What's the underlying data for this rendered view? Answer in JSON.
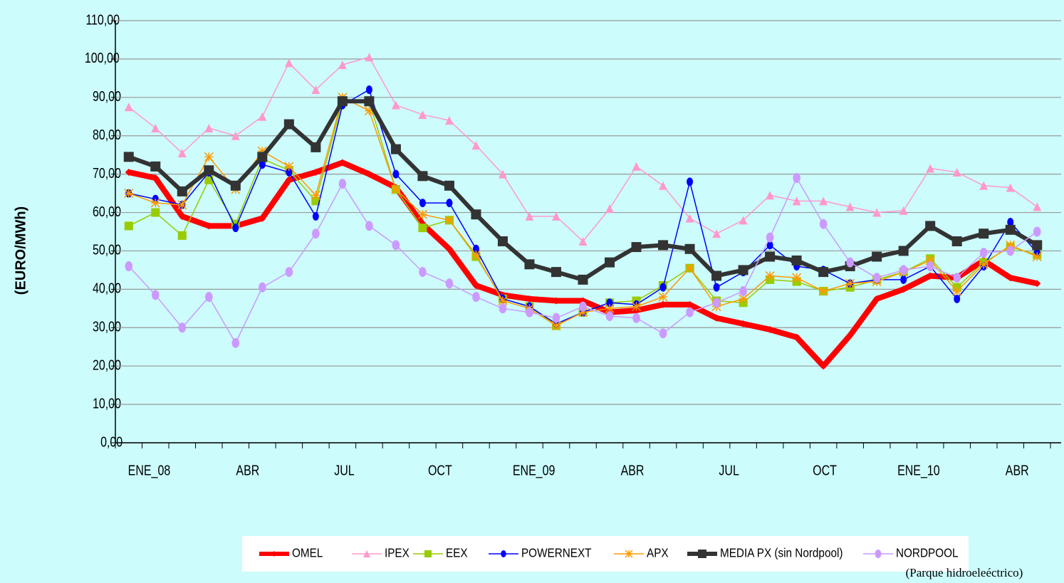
{
  "chart_data": {
    "type": "line",
    "y_label": "(EURO/MWh)",
    "footnote": "(Parque hidroeleéctrico)",
    "categories": [
      "ENE_08",
      null,
      null,
      "ABR",
      null,
      null,
      "JUL",
      null,
      null,
      "OCT",
      null,
      null,
      "ENE_09",
      null,
      null,
      "ABR",
      null,
      null,
      "JUL",
      null,
      null,
      "OCT",
      null,
      null,
      "ENE_10",
      null,
      null,
      "ABR",
      null,
      null,
      "JUL",
      null,
      null,
      "OCT",
      null
    ],
    "ylim": [
      0,
      110
    ],
    "yticks": [
      {
        "value": 0,
        "label": "0,00"
      },
      {
        "value": 10,
        "label": "10,00"
      },
      {
        "value": 20,
        "label": "20,00"
      },
      {
        "value": 30,
        "label": "30,00"
      },
      {
        "value": 40,
        "label": "40,00"
      },
      {
        "value": 50,
        "label": "50,00"
      },
      {
        "value": 60,
        "label": "60,00"
      },
      {
        "value": 70,
        "label": "70,00"
      },
      {
        "value": 80,
        "label": "80,00"
      },
      {
        "value": 90,
        "label": "90,00"
      },
      {
        "value": 100,
        "label": "100,00"
      },
      {
        "value": 110,
        "label": "110,00"
      }
    ],
    "grid": true,
    "legend": "bottom",
    "series": [
      {
        "name": "OMEL",
        "color": "#ff0000",
        "values": [
          70.5,
          69,
          59,
          56.5,
          56.5,
          58.5,
          68.5,
          70.5,
          73,
          70,
          66.5,
          57,
          50.5,
          41,
          38.5,
          37.5,
          37,
          37,
          34,
          34.5,
          36,
          36,
          32.5,
          31,
          29.5,
          27.5,
          20,
          28,
          37.5,
          40,
          43.5,
          43,
          47.5,
          43,
          41.5
        ]
      },
      {
        "name": "IPEX",
        "color": "#ff99cc",
        "values": [
          87.5,
          82,
          75.5,
          82,
          80,
          85,
          99,
          92,
          98.5,
          100.5,
          88,
          85.5,
          84,
          77.5,
          70,
          59,
          59,
          52.5,
          61,
          72,
          67,
          58.5,
          54.5,
          58,
          64.5,
          63,
          63,
          61.5,
          60,
          60.5,
          71.5,
          70.5,
          67,
          66.5,
          61.5
        ]
      },
      {
        "name": "EEX",
        "color": "#99cc00",
        "values": [
          56.5,
          60,
          54,
          68.5,
          57,
          74,
          71,
          63,
          89,
          89,
          66,
          56,
          58,
          48.5,
          37.5,
          35.5,
          30.5,
          34,
          36.5,
          37,
          41,
          45.5,
          37,
          36.5,
          42.5,
          42,
          39.5,
          40.5,
          42.5,
          44.5,
          48,
          40.5,
          47,
          51,
          49
        ]
      },
      {
        "name": "POWERNEXT",
        "color": "#0000ff",
        "values": [
          65,
          63.5,
          62,
          70.5,
          56,
          72.5,
          70.5,
          59,
          88,
          92,
          70,
          62.5,
          62.5,
          50.5,
          37.5,
          35.5,
          31,
          34,
          36.5,
          36,
          40.5,
          68,
          40.5,
          44.5,
          51.5,
          46,
          45,
          41.5,
          42.5,
          42.5,
          46,
          37.5,
          46,
          57.5,
          49.5
        ]
      },
      {
        "name": "APX",
        "color": "#ff9900",
        "values": [
          65,
          62.5,
          62,
          74.5,
          66,
          76,
          72,
          64.5,
          90,
          86.5,
          66,
          59.5,
          58,
          49,
          37,
          35,
          30.5,
          34,
          35,
          35.5,
          38,
          45.5,
          35.5,
          37.5,
          43.5,
          43,
          39.5,
          41.5,
          42,
          44.5,
          47.5,
          39.5,
          46.5,
          51.5,
          48.5
        ]
      },
      {
        "name": "MEDIA PX (sin Nordpool)",
        "color": "#333333",
        "values": [
          74.5,
          72,
          65.5,
          71,
          67,
          74.5,
          83,
          77,
          89,
          89,
          76.5,
          69.5,
          67,
          59.5,
          52.5,
          46.5,
          44.5,
          42.5,
          47,
          51,
          51.5,
          50.5,
          43.5,
          45,
          48.5,
          47.5,
          44.5,
          46,
          48.5,
          50,
          56.5,
          52.5,
          54.5,
          55.5,
          51.5
        ]
      },
      {
        "name": "NORDPOOL",
        "color": "#cc99ff",
        "values": [
          46,
          38.5,
          30,
          38,
          26,
          40.5,
          44.5,
          54.5,
          67.5,
          56.5,
          51.5,
          44.5,
          41.5,
          38,
          35,
          34,
          32.5,
          35.5,
          33,
          32.5,
          28.5,
          34,
          36.5,
          39.5,
          53.5,
          69,
          57,
          47,
          43,
          45,
          46,
          43,
          49.5,
          50,
          55
        ]
      }
    ]
  }
}
